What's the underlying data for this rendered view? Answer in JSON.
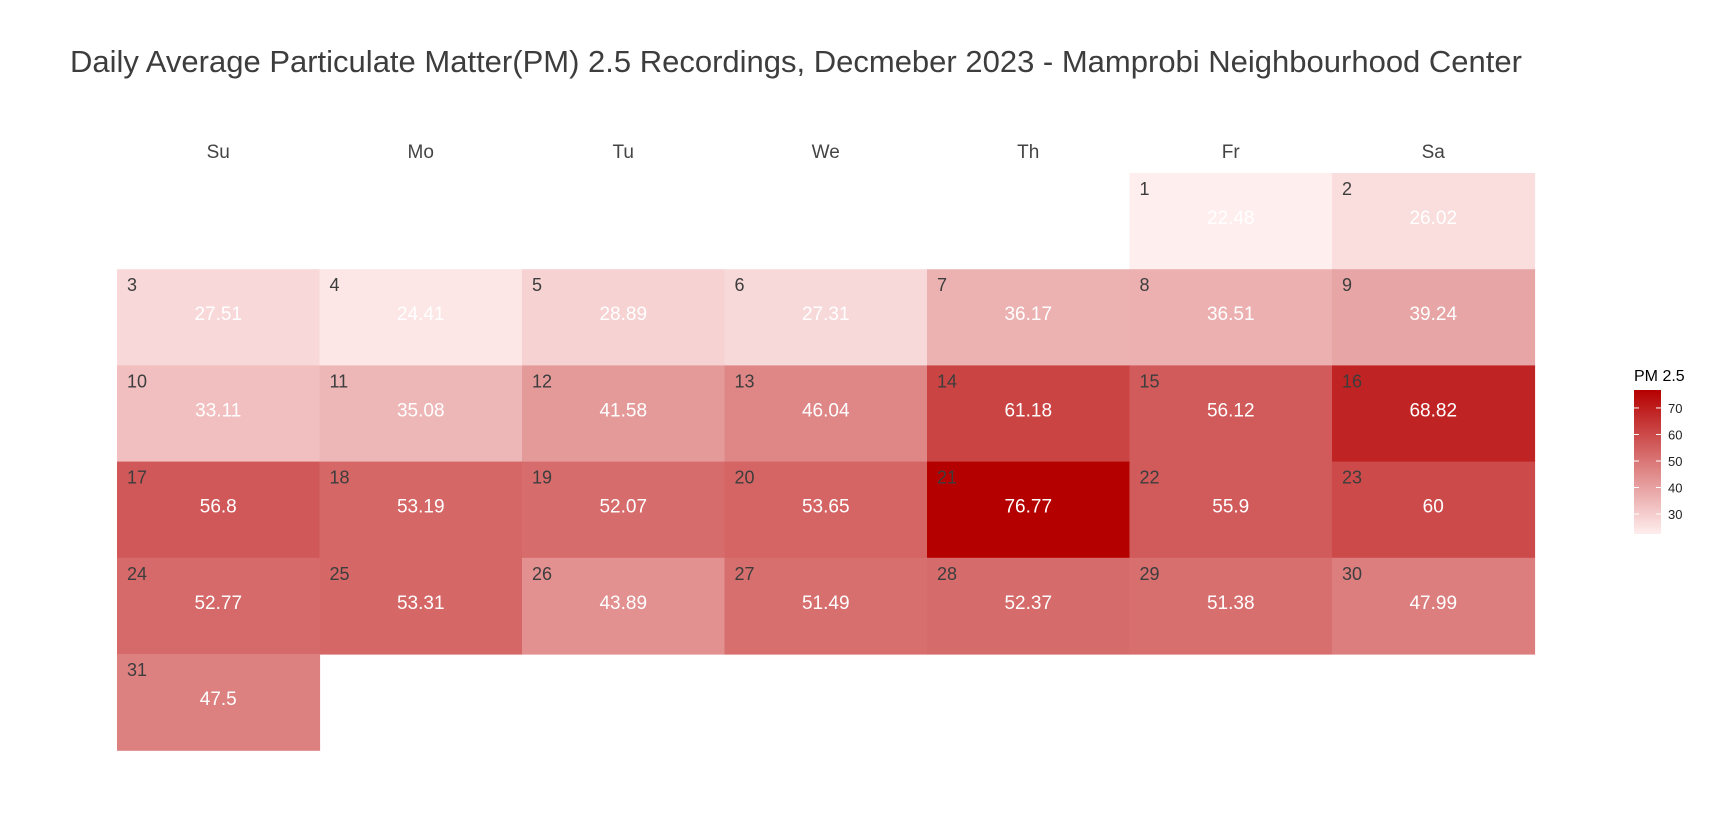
{
  "chart_data": {
    "type": "heatmap",
    "title": "Daily Average Particulate Matter(PM) 2.5 Recordings, Decmeber 2023 - Mamprobi Neighbourhood Center",
    "weekdays": [
      "Su",
      "Mo",
      "Tu",
      "We",
      "Th",
      "Fr",
      "Sa"
    ],
    "first_weekday_index": 5,
    "days": [
      {
        "day": "1",
        "value": 22.48
      },
      {
        "day": "2",
        "value": 26.02
      },
      {
        "day": "3",
        "value": 27.51
      },
      {
        "day": "4",
        "value": 24.41
      },
      {
        "day": "5",
        "value": 28.89
      },
      {
        "day": "6",
        "value": 27.31
      },
      {
        "day": "7",
        "value": 36.17
      },
      {
        "day": "8",
        "value": 36.51
      },
      {
        "day": "9",
        "value": 39.24
      },
      {
        "day": "10",
        "value": 33.11
      },
      {
        "day": "11",
        "value": 35.08
      },
      {
        "day": "12",
        "value": 41.58
      },
      {
        "day": "13",
        "value": 46.04
      },
      {
        "day": "14",
        "value": 61.18
      },
      {
        "day": "15",
        "value": 56.12
      },
      {
        "day": "16",
        "value": 68.82
      },
      {
        "day": "17",
        "value": 56.8
      },
      {
        "day": "18",
        "value": 53.19
      },
      {
        "day": "19",
        "value": 52.07
      },
      {
        "day": "20",
        "value": 53.65
      },
      {
        "day": "21",
        "value": 76.77
      },
      {
        "day": "22",
        "value": 55.9
      },
      {
        "day": "23",
        "value": 60
      },
      {
        "day": "24",
        "value": 52.77
      },
      {
        "day": "25",
        "value": 53.31
      },
      {
        "day": "26",
        "value": 43.89
      },
      {
        "day": "27",
        "value": 51.49
      },
      {
        "day": "28",
        "value": 52.37
      },
      {
        "day": "29",
        "value": 51.38
      },
      {
        "day": "30",
        "value": 47.99
      },
      {
        "day": "31",
        "value": 47.5
      }
    ],
    "legend": {
      "title": "PM 2.5",
      "ticks": [
        30,
        40,
        50,
        60,
        70
      ],
      "range": [
        22.48,
        76.77
      ],
      "color_low": "#ffeeee",
      "color_high": "#b50000"
    }
  }
}
